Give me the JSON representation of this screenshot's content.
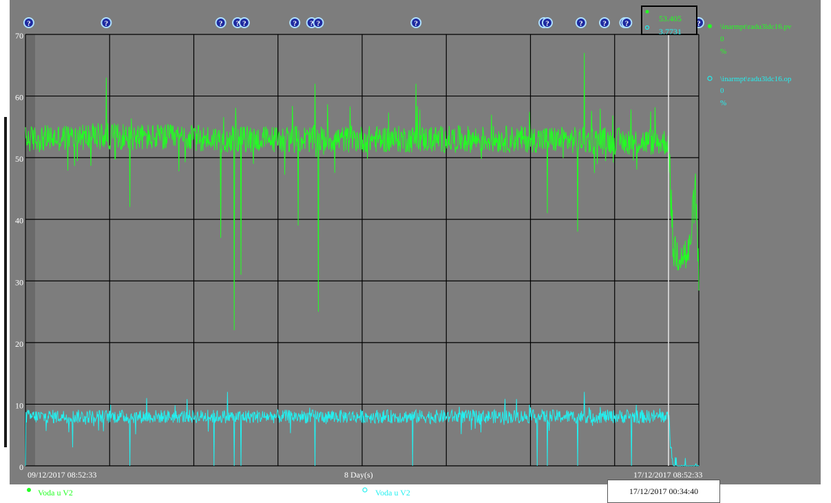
{
  "chart_data": {
    "type": "line",
    "y_axis": {
      "ylim": [
        0,
        70
      ],
      "ticks": [
        {
          "value": 70,
          "label": "70"
        },
        {
          "value": 60,
          "label": "60"
        },
        {
          "value": 50,
          "label": "50"
        },
        {
          "value": 40,
          "label": "40"
        },
        {
          "value": 30,
          "label": "30"
        },
        {
          "value": 20,
          "label": "20"
        },
        {
          "value": 10,
          "label": "10"
        },
        {
          "value": 0,
          "label": "0"
        }
      ]
    },
    "x_axis": {
      "start_label": "09/12/2017 08:52:33",
      "span_label": "8 Day(s)",
      "end_label": "17/12/2017 08:52:33"
    },
    "grid": true,
    "series": [
      {
        "tag": "\\inarmpt\\radu3ldc16.pv",
        "name": "Voda u V2",
        "color": "#22ff22",
        "marker": "filled-dot",
        "legend_value": "0",
        "legend_unit": "%",
        "cursor_value": "53.405",
        "profile": [
          {
            "t": 0.0,
            "mean": 53
          },
          {
            "t": 0.12,
            "mean": 53.5
          },
          {
            "t": 0.3,
            "mean": 53
          },
          {
            "t": 0.5,
            "mean": 53
          },
          {
            "t": 0.75,
            "mean": 53
          },
          {
            "t": 0.955,
            "mean": 52.5
          },
          {
            "t": 0.962,
            "mean": 35
          },
          {
            "t": 0.985,
            "mean": 34
          },
          {
            "t": 0.995,
            "mean": 45
          },
          {
            "t": 1.0,
            "mean": 30
          }
        ],
        "spikes_up": [
          {
            "t": 0.12,
            "value": 63
          },
          {
            "t": 0.29,
            "value": 65
          },
          {
            "t": 0.43,
            "value": 62
          },
          {
            "t": 0.58,
            "value": 62
          },
          {
            "t": 0.775,
            "value": 65
          },
          {
            "t": 0.83,
            "value": 67
          }
        ],
        "spikes_down": [
          {
            "t": 0.155,
            "value": 42
          },
          {
            "t": 0.29,
            "value": 37
          },
          {
            "t": 0.31,
            "value": 22
          },
          {
            "t": 0.32,
            "value": 31
          },
          {
            "t": 0.405,
            "value": 39
          },
          {
            "t": 0.435,
            "value": 25
          },
          {
            "t": 0.775,
            "value": 41
          },
          {
            "t": 0.82,
            "value": 38
          }
        ]
      },
      {
        "tag": "\\inarmpt\\radu3ldc16.op",
        "name": "Voda u V2",
        "color": "#22f0f0",
        "marker": "hollow-circle",
        "legend_value": "0",
        "legend_unit": "%",
        "cursor_value": "3.7731",
        "profile": [
          {
            "t": 0.0,
            "mean": 8
          },
          {
            "t": 0.5,
            "mean": 8
          },
          {
            "t": 0.955,
            "mean": 8
          },
          {
            "t": 0.962,
            "mean": 0
          },
          {
            "t": 1.0,
            "mean": 0
          }
        ],
        "spikes_up": [
          {
            "t": 0.31,
            "value": 14
          },
          {
            "t": 0.3,
            "value": 12
          },
          {
            "t": 0.18,
            "value": 11
          },
          {
            "t": 0.83,
            "value": 12
          }
        ],
        "spikes_down": [
          {
            "t": 0.0,
            "value": 0
          },
          {
            "t": 0.07,
            "value": 3
          },
          {
            "t": 0.155,
            "value": 0
          },
          {
            "t": 0.28,
            "value": 0
          },
          {
            "t": 0.31,
            "value": 0
          },
          {
            "t": 0.32,
            "value": 0
          },
          {
            "t": 0.43,
            "value": 0
          },
          {
            "t": 0.575,
            "value": 0
          },
          {
            "t": 0.76,
            "value": 0
          },
          {
            "t": 0.775,
            "value": 0
          },
          {
            "t": 0.82,
            "value": 0
          },
          {
            "t": 0.9,
            "value": 0
          }
        ]
      }
    ],
    "cursor": {
      "t": 0.955,
      "time_label": "17/12/2017 00:34:40"
    },
    "event_markers": [
      0.005,
      0.12,
      0.29,
      0.315,
      0.325,
      0.4,
      0.425,
      0.435,
      0.58,
      0.77,
      0.775,
      0.825,
      0.86,
      0.89,
      0.893,
      1.0
    ]
  },
  "colors": {
    "background": "#7d7d7d",
    "plot_background": "#7d7d7d",
    "grid": "#000000",
    "marker_fill": "#1e2aa0",
    "marker_ring": "#aee0ff",
    "cursor_line": "#e8e8e8"
  },
  "icons": {
    "event_marker": "question-mark-icon"
  }
}
